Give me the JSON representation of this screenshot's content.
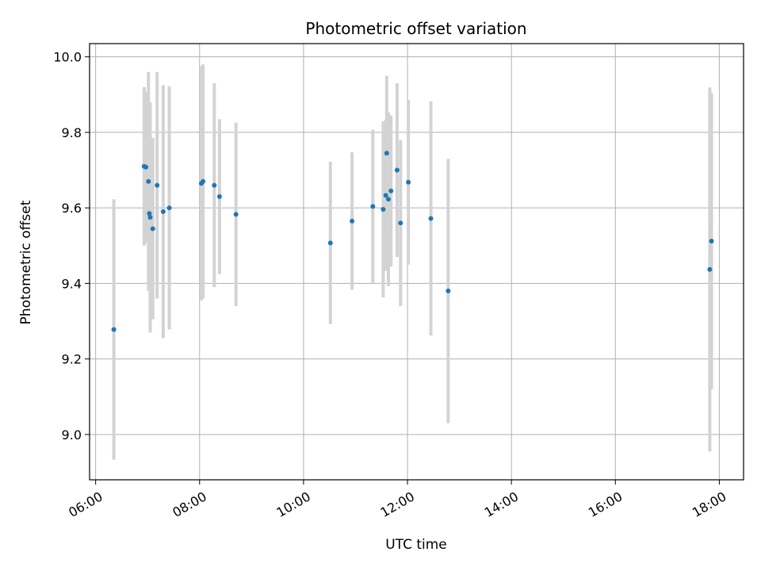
{
  "chart_data": {
    "type": "scatter",
    "title": "Photometric offset variation",
    "xlabel": "UTC time",
    "ylabel": "Photometric offset",
    "xlim": [
      "05:53",
      "18:28"
    ],
    "ylim": [
      8.88,
      10.035
    ],
    "x_ticks": [
      "06:00",
      "08:00",
      "10:00",
      "12:00",
      "14:00",
      "16:00",
      "18:00"
    ],
    "y_ticks": [
      "9.0",
      "9.2",
      "9.4",
      "9.6",
      "9.8",
      "10.0"
    ],
    "grid": true,
    "colors": {
      "points": "#1f77b4",
      "errorbars": "#d3d3d3",
      "grid": "#b0b0b0"
    },
    "series": [
      {
        "points": [
          {
            "x": "06:21",
            "y": 9.278,
            "err": 0.345
          },
          {
            "x": "06:56",
            "y": 9.71,
            "err": 0.21
          },
          {
            "x": "06:58",
            "y": 9.708,
            "err": 0.2
          },
          {
            "x": "07:01",
            "y": 9.67,
            "err": 0.29
          },
          {
            "x": "07:02",
            "y": 9.585,
            "err": 0.205
          },
          {
            "x": "07:03",
            "y": 9.575,
            "err": 0.305
          },
          {
            "x": "07:06",
            "y": 9.545,
            "err": 0.24
          },
          {
            "x": "07:11",
            "y": 9.66,
            "err": 0.3
          },
          {
            "x": "07:18",
            "y": 9.59,
            "err": 0.335
          },
          {
            "x": "07:25",
            "y": 9.6,
            "err": 0.322
          },
          {
            "x": "08:02",
            "y": 9.665,
            "err": 0.31
          },
          {
            "x": "08:04",
            "y": 9.67,
            "err": 0.31
          },
          {
            "x": "08:17",
            "y": 9.66,
            "err": 0.27
          },
          {
            "x": "08:23",
            "y": 9.63,
            "err": 0.205
          },
          {
            "x": "08:42",
            "y": 9.583,
            "err": 0.243
          },
          {
            "x": "10:31",
            "y": 9.507,
            "err": 0.215
          },
          {
            "x": "10:56",
            "y": 9.565,
            "err": 0.182
          },
          {
            "x": "11:20",
            "y": 9.604,
            "err": 0.203
          },
          {
            "x": "11:32",
            "y": 9.596,
            "err": 0.233
          },
          {
            "x": "11:35",
            "y": 9.633,
            "err": 0.2
          },
          {
            "x": "11:36",
            "y": 9.745,
            "err": 0.205
          },
          {
            "x": "11:38",
            "y": 9.623,
            "err": 0.23
          },
          {
            "x": "11:41",
            "y": 9.645,
            "err": 0.2
          },
          {
            "x": "11:48",
            "y": 9.7,
            "err": 0.23
          },
          {
            "x": "11:52",
            "y": 9.56,
            "err": 0.22
          },
          {
            "x": "12:01",
            "y": 9.668,
            "err": 0.218
          },
          {
            "x": "12:27",
            "y": 9.572,
            "err": 0.31
          },
          {
            "x": "12:47",
            "y": 9.38,
            "err": 0.35
          },
          {
            "x": "17:49",
            "y": 9.437,
            "err": 0.482
          },
          {
            "x": "17:51",
            "y": 9.512,
            "err": 0.392
          }
        ]
      }
    ]
  }
}
